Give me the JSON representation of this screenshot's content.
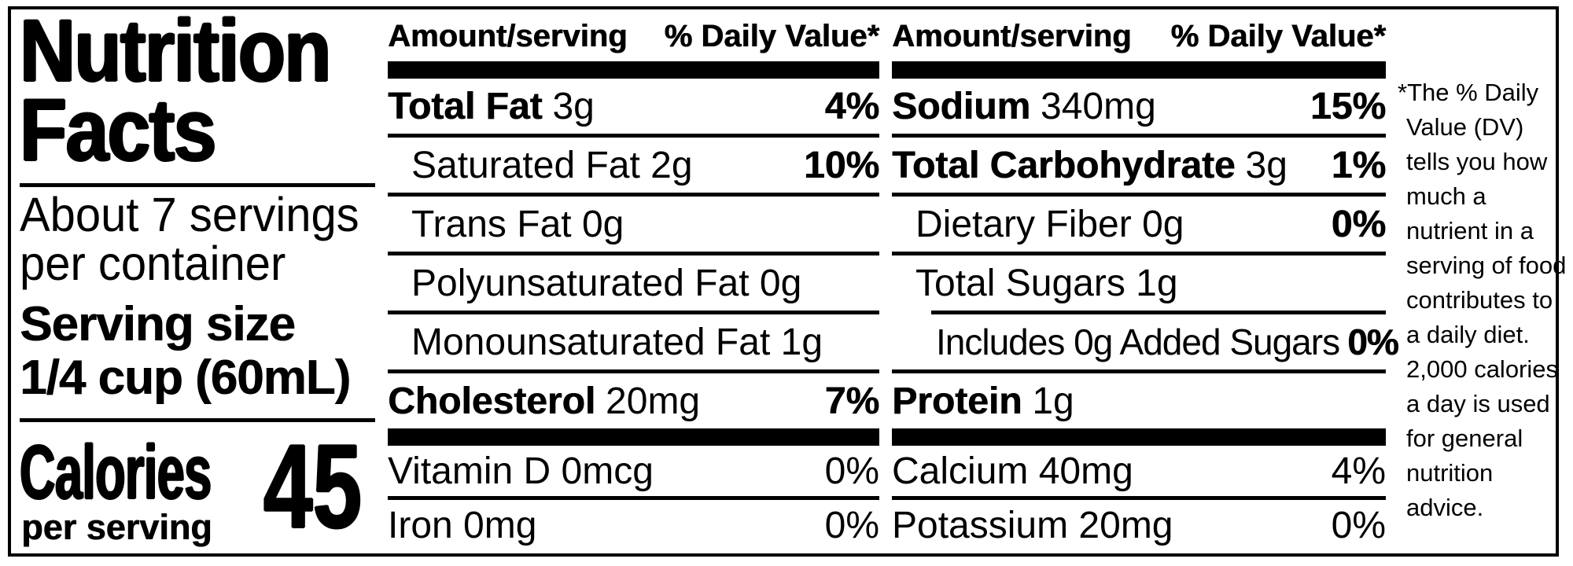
{
  "title": {
    "line1": "Nutrition",
    "line2": "Facts"
  },
  "servings": {
    "line1": "About 7 servings",
    "line2": "per container"
  },
  "serving_size": {
    "label": "Serving size",
    "value": "1/4 cup (60mL)"
  },
  "calories": {
    "label": "Calories",
    "sublabel": "per serving",
    "value": "45"
  },
  "columns": {
    "left": {
      "header": {
        "amount": "Amount/serving",
        "daily_value": "% Daily Value*"
      },
      "rows": [
        {
          "name": "Total Fat",
          "amount": "3g",
          "dv": "4%"
        },
        {
          "name": "",
          "amount": "Saturated Fat 2g",
          "dv": "10%"
        },
        {
          "name": "",
          "amount": "Trans Fat 0g",
          "dv": ""
        },
        {
          "name": "",
          "amount": "Polyunsaturated Fat 0g",
          "dv": ""
        },
        {
          "name": "",
          "amount": "Monounsaturated Fat 1g",
          "dv": ""
        },
        {
          "name": "Cholesterol",
          "amount": "20mg",
          "dv": "7%"
        },
        {
          "name": "",
          "amount": "Vitamin D 0mcg",
          "dv": "0%"
        },
        {
          "name": "",
          "amount": "Iron 0mg",
          "dv": "0%"
        }
      ]
    },
    "right": {
      "header": {
        "amount": "Amount/serving",
        "daily_value": "% Daily Value*"
      },
      "rows": [
        {
          "name": "Sodium",
          "amount": "340mg",
          "dv": "15%"
        },
        {
          "name": "Total Carbohydrate",
          "amount": "3g",
          "dv": "1%"
        },
        {
          "name": "",
          "amount": "Dietary Fiber 0g",
          "dv": "0%"
        },
        {
          "name": "",
          "amount": "Total Sugars 1g",
          "dv": ""
        },
        {
          "name": "",
          "amount": "Includes 0g Added Sugars",
          "dv": "0%"
        },
        {
          "name": "Protein",
          "amount": "1g",
          "dv": ""
        },
        {
          "name": "",
          "amount": "Calcium 40mg",
          "dv": "4%"
        },
        {
          "name": "",
          "amount": "Potassium 20mg",
          "dv": "0%"
        }
      ]
    }
  },
  "footnote_lines": [
    "*The % Daily",
    "Value (DV)",
    "tells you how",
    "much a",
    "nutrient in a",
    "serving of food",
    "contributes to",
    "a daily diet.",
    "2,000 calories",
    "a day is used",
    "for general",
    "nutrition",
    "advice."
  ],
  "colors": {
    "ink": "#000000",
    "paper": "#ffffff"
  }
}
